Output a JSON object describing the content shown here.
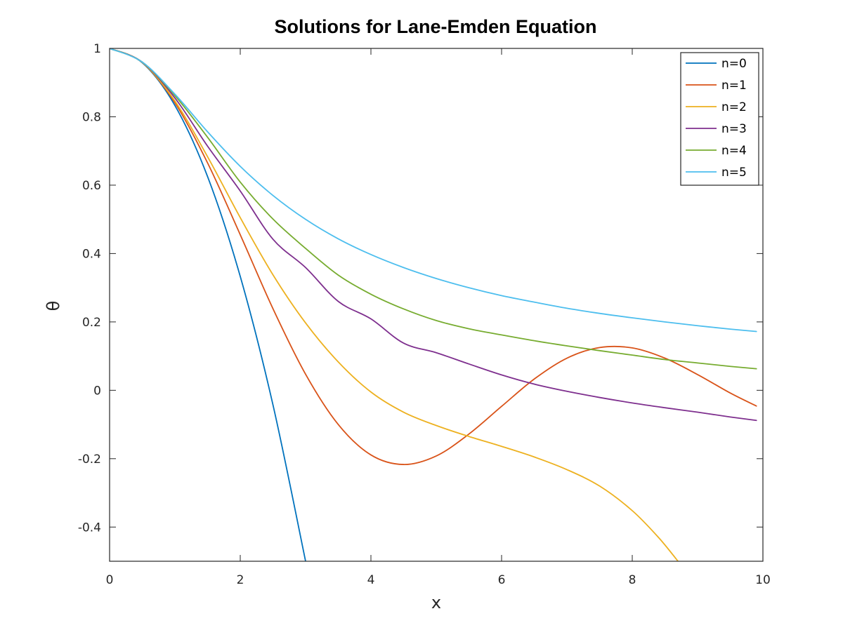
{
  "chart_data": {
    "type": "line",
    "title": "Solutions for Lane-Emden Equation",
    "xlabel": "x",
    "ylabel": "θ",
    "xlim": [
      0,
      10
    ],
    "ylim": [
      -0.5,
      1
    ],
    "xticks": [
      0,
      2,
      4,
      6,
      8,
      10
    ],
    "xtick_labels": [
      "0",
      "2",
      "4",
      "6",
      "8",
      "10"
    ],
    "yticks": [
      -0.4,
      -0.2,
      0,
      0.2,
      0.4,
      0.6,
      0.8,
      1
    ],
    "ytick_labels": [
      "-0.4",
      "-0.2",
      "0",
      "0.2",
      "0.4",
      "0.6",
      "0.8",
      "1"
    ],
    "grid": false,
    "legend": "top-right",
    "series": [
      {
        "name": "n=0",
        "color": "#0072bd",
        "x": [
          0,
          0.5,
          1.0,
          1.5,
          2.0,
          2.5,
          3.0
        ],
        "y": [
          1.0,
          0.958,
          0.833,
          0.625,
          0.333,
          -0.042,
          -0.5
        ]
      },
      {
        "name": "n=1",
        "color": "#d95319",
        "x": [
          0,
          0.5,
          1.0,
          1.5,
          2.0,
          2.5,
          3.0,
          3.5,
          4.0,
          4.5,
          5.0,
          5.5,
          6.0,
          6.5,
          7.0,
          7.5,
          8.0,
          8.5,
          9.0,
          9.5,
          9.9
        ],
        "y": [
          1.0,
          0.959,
          0.841,
          0.665,
          0.455,
          0.239,
          0.047,
          -0.1,
          -0.189,
          -0.217,
          -0.192,
          -0.128,
          -0.047,
          0.033,
          0.094,
          0.125,
          0.124,
          0.094,
          0.046,
          -0.008,
          -0.046
        ]
      },
      {
        "name": "n=2",
        "color": "#edb120",
        "x": [
          0,
          0.5,
          1.0,
          1.5,
          2.0,
          2.5,
          3.0,
          3.5,
          4.0,
          4.5,
          5.0,
          5.5,
          6.0,
          6.5,
          7.0,
          7.5,
          8.0,
          8.4,
          8.7
        ],
        "y": [
          1.0,
          0.959,
          0.846,
          0.683,
          0.505,
          0.338,
          0.197,
          0.083,
          -0.005,
          -0.064,
          -0.103,
          -0.135,
          -0.164,
          -0.195,
          -0.232,
          -0.28,
          -0.352,
          -0.43,
          -0.5
        ]
      },
      {
        "name": "n=3",
        "color": "#7e2f8e",
        "x": [
          0,
          0.5,
          1.0,
          1.5,
          2.0,
          2.5,
          3.0,
          3.5,
          4.0,
          4.5,
          5.0,
          5.5,
          6.0,
          6.5,
          7.0,
          7.5,
          8.0,
          8.5,
          9.0,
          9.5,
          9.9
        ],
        "y": [
          1.0,
          0.96,
          0.855,
          0.714,
          0.583,
          0.442,
          0.359,
          0.26,
          0.209,
          0.138,
          0.11,
          0.077,
          0.045,
          0.018,
          -0.003,
          -0.021,
          -0.037,
          -0.051,
          -0.064,
          -0.078,
          -0.088
        ]
      },
      {
        "name": "n=4",
        "color": "#77ac30",
        "x": [
          0,
          0.5,
          1.0,
          1.5,
          2.0,
          2.5,
          3.0,
          3.5,
          4.0,
          4.5,
          5.0,
          5.5,
          6.0,
          6.5,
          7.0,
          7.5,
          8.0,
          8.5,
          9.0,
          9.5,
          9.9
        ],
        "y": [
          1.0,
          0.96,
          0.862,
          0.74,
          0.609,
          0.501,
          0.415,
          0.337,
          0.281,
          0.238,
          0.204,
          0.18,
          0.162,
          0.145,
          0.13,
          0.116,
          0.103,
          0.09,
          0.08,
          0.07,
          0.063
        ]
      },
      {
        "name": "n=5",
        "color": "#4dbeee",
        "x": [
          0,
          0.5,
          1.0,
          1.5,
          2.0,
          2.5,
          3.0,
          3.5,
          4.0,
          4.5,
          5.0,
          5.5,
          6.0,
          6.5,
          7.0,
          7.5,
          8.0,
          8.5,
          9.0,
          9.5,
          9.9
        ],
        "y": [
          1.0,
          0.96,
          0.866,
          0.756,
          0.655,
          0.57,
          0.5,
          0.443,
          0.397,
          0.359,
          0.327,
          0.3,
          0.277,
          0.258,
          0.24,
          0.225,
          0.212,
          0.2,
          0.189,
          0.179,
          0.172
        ]
      }
    ]
  }
}
